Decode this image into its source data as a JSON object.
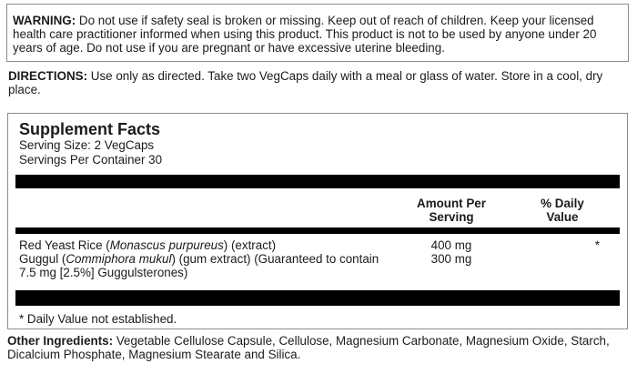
{
  "warning": {
    "label": "WARNING:",
    "text": "Do not use if safety seal is broken or missing. Keep out of reach of children. Keep your licensed health care practitioner informed when using this product. This product is not to be used by anyone under 20 years of age. Do not use if you are pregnant or have excessive uterine bleeding."
  },
  "directions": {
    "label": "DIRECTIONS:",
    "text": "Use only as directed. Take two VegCaps daily with a meal or glass of water.  Store in a cool, dry place."
  },
  "supplement_facts": {
    "title": "Supplement Facts",
    "serving_size": "Serving Size: 2 VegCaps",
    "servings_per_container": "Servings Per Container 30",
    "columns": {
      "amount": "Amount Per Serving",
      "daily_value": "% Daily Value"
    },
    "rows": [
      {
        "name_pre": "Red Yeast Rice (",
        "name_italic": "Monascus purpureus",
        "name_post": ")  (extract)",
        "amount": "400 mg",
        "daily_value": "*"
      },
      {
        "name_pre": "Guggul (",
        "name_italic": "Commiphora mukul",
        "name_post": ")  (gum extract) (Guaranteed to contain 7.5 mg [2.5%] Guggulsterones)",
        "amount": "300 mg",
        "daily_value": ""
      }
    ],
    "footnote": "* Daily Value not established."
  },
  "other_ingredients": {
    "label": "Other Ingredients:",
    "text": "Vegetable Cellulose Capsule, Cellulose, Magnesium Carbonate, Magnesium Oxide, Starch, Dicalcium Phosphate, Magnesium Stearate and Silica."
  },
  "colors": {
    "background": "#ffffff",
    "text": "#1b1b1b",
    "box_border": "#8c8c8c",
    "rule_bar": "#000000"
  }
}
